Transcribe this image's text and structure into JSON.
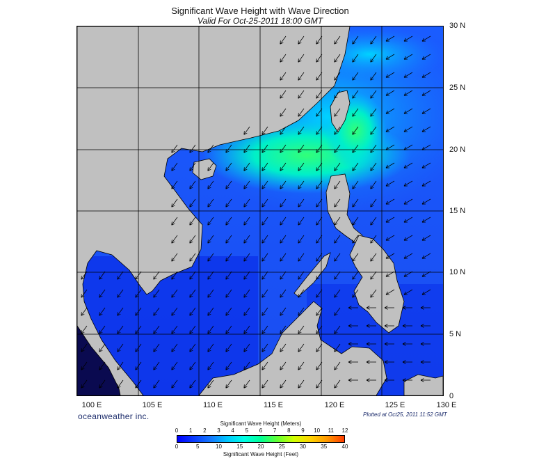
{
  "title": "Significant Wave Height with Wave Direction",
  "subtitle": "Valid For Oct-25-2011 18:00 GMT",
  "lat_labels": [
    "30 N",
    "25 N",
    "20 N",
    "15 N",
    "10 N",
    "5 N",
    "0"
  ],
  "lon_labels": [
    "100 E",
    "105 E",
    "110 E",
    "115 E",
    "120 E",
    "125 E",
    "130 E"
  ],
  "credit": "oceanweather inc.",
  "plotted": "Plotted at Oct25, 2011 11:52 GMT",
  "legend": {
    "meters_caption": "Significant Wave Height (Meters)",
    "feet_caption": "Significant Wave Height (Feet)",
    "meters_ticks": [
      "0",
      "1",
      "2",
      "3",
      "4",
      "5",
      "6",
      "7",
      "8",
      "9",
      "10",
      "11",
      "12"
    ],
    "feet_ticks": [
      "0",
      "5",
      "10",
      "15",
      "20",
      "25",
      "30",
      "35",
      "40"
    ]
  },
  "map_extent": {
    "lon": [
      100,
      130
    ],
    "lat": [
      0,
      30
    ]
  },
  "colors": {
    "land": "#c0c0c0",
    "sea_low": "#0a1ee0",
    "sea_mid": "#1478ff",
    "sea_high": "#00ffa0",
    "grid": "#000000"
  }
}
